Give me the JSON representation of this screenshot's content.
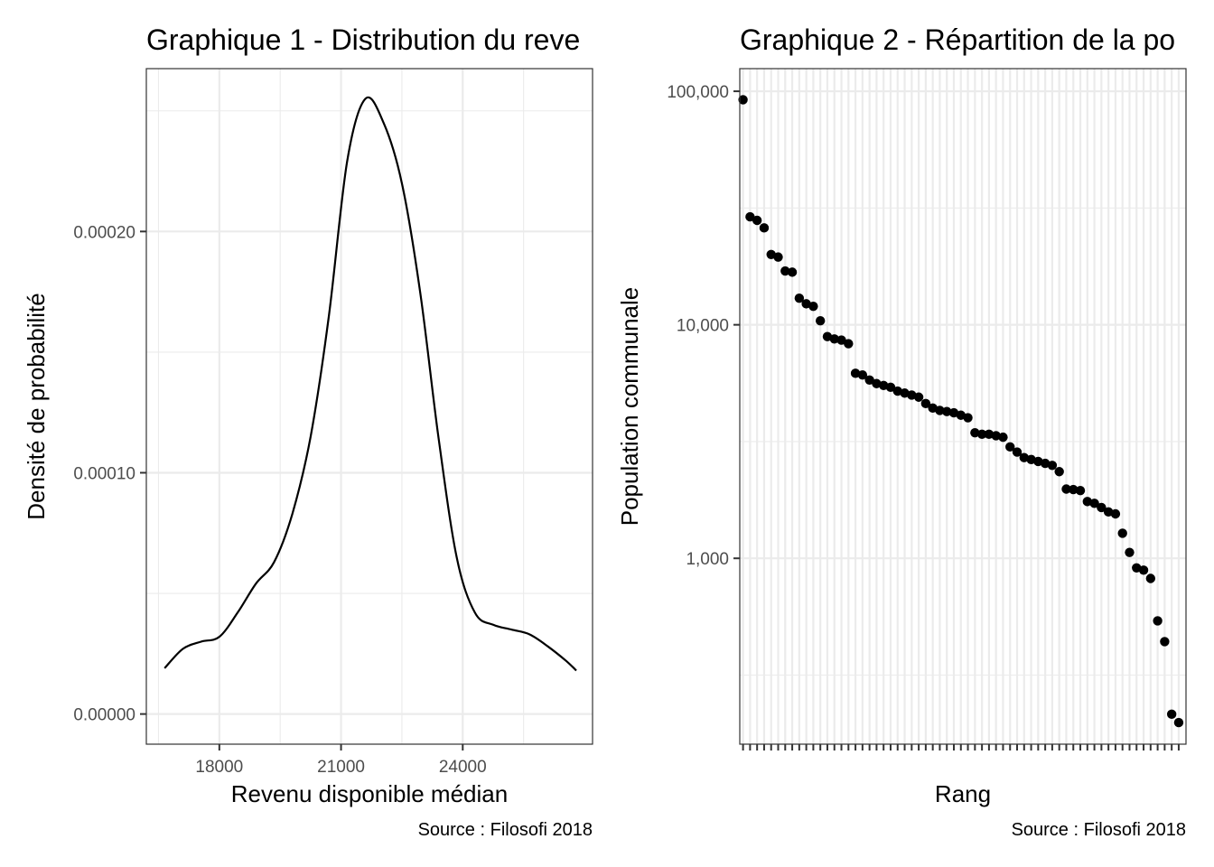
{
  "chart_data": [
    {
      "type": "line",
      "chart_kind": "density",
      "title": "Graphique 1 - Distribution du reve",
      "xlabel": "Revenu disponible médian",
      "ylabel": "Densité de probabilité",
      "caption": "Source : Filosofi 2018",
      "xlim": [
        16200,
        27200
      ],
      "ylim": [
        -1.25e-05,
        0.0002675
      ],
      "x_ticks": [
        18000,
        21000,
        24000
      ],
      "x_tick_labels": [
        "18000",
        "21000",
        "24000"
      ],
      "y_ticks": [
        0,
        0.0001,
        0.0002
      ],
      "y_tick_labels": [
        "0.00000",
        "0.00010",
        "0.00020"
      ],
      "grid": true,
      "series": [
        {
          "x": [
            16650,
            17100,
            17550,
            18000,
            18450,
            18900,
            19350,
            19800,
            20250,
            20700,
            21150,
            21600,
            22050,
            22500,
            22950,
            23400,
            23850,
            24300,
            24750,
            25200,
            25650,
            26100,
            26550,
            26800
          ],
          "y": [
            1.9e-05,
            2.7e-05,
            3e-05,
            3.2e-05,
            4.2e-05,
            5.4e-05,
            6.3e-05,
            8.3e-05,
            0.000115,
            0.000165,
            0.000229,
            0.000255,
            0.000245,
            0.00022,
            0.000175,
            0.000115,
            6.5e-05,
            4.2e-05,
            3.7e-05,
            3.5e-05,
            3.3e-05,
            2.8e-05,
            2.2e-05,
            1.8e-05
          ],
          "color": "#000000"
        }
      ]
    },
    {
      "type": "scatter",
      "title": "Graphique 2 - Répartition de la po",
      "xlabel": "Rang",
      "ylabel": "Population communale",
      "caption": "Source : Filosofi 2018",
      "y_scale": "log10",
      "ylim": [
        160,
        125000
      ],
      "y_ticks": [
        1000,
        10000,
        100000
      ],
      "y_tick_labels": [
        "1,000",
        "10,000",
        "100,000"
      ],
      "x_tick_labels": [],
      "grid": true,
      "marker_color": "#000000",
      "series": [
        {
          "y": [
            92000,
            29000,
            28000,
            26000,
            20000,
            19500,
            17000,
            16800,
            13000,
            12300,
            12000,
            10400,
            8900,
            8700,
            8600,
            8300,
            6200,
            6100,
            5800,
            5600,
            5500,
            5400,
            5200,
            5100,
            5000,
            4900,
            4600,
            4400,
            4300,
            4250,
            4200,
            4100,
            4000,
            3450,
            3400,
            3400,
            3350,
            3300,
            3000,
            2850,
            2700,
            2650,
            2600,
            2550,
            2500,
            2350,
            1980,
            1970,
            1950,
            1750,
            1720,
            1650,
            1580,
            1550,
            1280,
            1060,
            910,
            890,
            820,
            540,
            440,
            215,
            198
          ]
        }
      ]
    }
  ]
}
